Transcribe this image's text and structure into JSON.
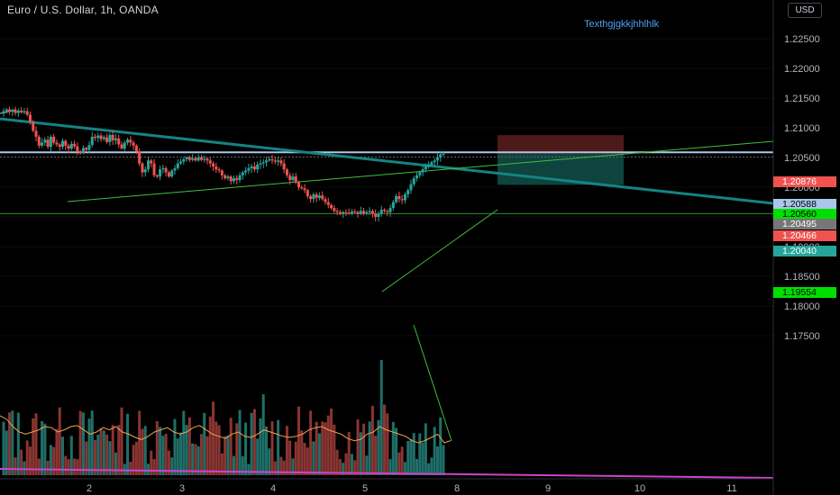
{
  "header": {
    "symbol_title": "Euro / U.S. Dollar, 1h, OANDA",
    "currency_button": "USD",
    "note_text": "Texthgjgkkjhhlhlk"
  },
  "colors": {
    "up": "#26a69a",
    "down": "#ef5350",
    "trendline": "#138484",
    "green_line": "#3fbf3f",
    "support": "#2e8b2e",
    "ma": "#f0a050",
    "vol_ma": "#cc44cc",
    "stop_zone": "#5a1f1f",
    "target_zone": "#0f4a45",
    "resistance": "#a9c7e8"
  },
  "chart_data": {
    "type": "candlestick",
    "title": "Euro / U.S. Dollar, 1h, OANDA",
    "ylim": [
      1.1725,
      1.2275
    ],
    "y_ticks": [
      "1.22500",
      "1.22000",
      "1.21500",
      "1.21000",
      "1.20500",
      "1.20000",
      "1.19500",
      "1.19000",
      "1.18500",
      "1.18000",
      "1.17500"
    ],
    "x_ticks": [
      "2",
      "3",
      "4",
      "5",
      "8",
      "9",
      "10",
      "11"
    ],
    "price_labels": [
      {
        "text": "1.20876",
        "color": "#ef5350",
        "value": 1.20876
      },
      {
        "text": "1.20588",
        "color": "#a9c7e8",
        "value": 1.20588
      },
      {
        "text": "1.20560",
        "color": "#00e000",
        "value": 1.2056
      },
      {
        "text": "1.20495",
        "color": "#777777",
        "value": 1.20495
      },
      {
        "text": "1.20466",
        "color": "#ef5350",
        "value": 1.20466
      },
      {
        "text": "1.20040",
        "color": "#26a69a",
        "value": 1.2004
      },
      {
        "text": "1.19554",
        "color": "#00e000",
        "value": 1.19554
      }
    ],
    "candles_close": [
      1.2128,
      1.2131,
      1.2127,
      1.213,
      1.2125,
      1.2129,
      1.2126,
      1.2128,
      1.2122,
      1.211,
      1.2095,
      1.2085,
      1.207,
      1.2075,
      1.208,
      1.2068,
      1.2085,
      1.2075,
      1.2072,
      1.2068,
      1.2078,
      1.207,
      1.2065,
      1.2073,
      1.2069,
      1.206,
      1.2058,
      1.2066,
      1.2063,
      1.2071,
      1.2085,
      1.2083,
      1.2087,
      1.2081,
      1.2084,
      1.2076,
      1.2088,
      1.2079,
      1.2082,
      1.2072,
      1.2065,
      1.2075,
      1.208,
      1.2075,
      1.207,
      1.206,
      1.204,
      1.2025,
      1.203,
      1.2045,
      1.204,
      1.202,
      1.2018,
      1.203,
      1.2032,
      1.2025,
      1.2018,
      1.2028,
      1.2032,
      1.204,
      1.2043,
      1.2047,
      1.205,
      1.2046,
      1.2049,
      1.2045,
      1.205,
      1.2046,
      1.2048,
      1.2045,
      1.204,
      1.2035,
      1.203,
      1.2028,
      1.202,
      1.2015,
      1.2018,
      1.201,
      1.2015,
      1.2012,
      1.202,
      1.2025,
      1.2028,
      1.2032,
      1.2035,
      1.203,
      1.2038,
      1.204,
      1.2042,
      1.2045,
      1.2047,
      1.2045,
      1.2043,
      1.2045,
      1.204,
      1.203,
      1.202,
      1.2012,
      1.2018,
      1.2008,
      1.2,
      1.1998,
      1.1995,
      1.1985,
      1.198,
      1.1988,
      1.1982,
      1.1986,
      1.198,
      1.1975,
      1.197,
      1.1965,
      1.196,
      1.1958,
      1.1955,
      1.1958,
      1.1957,
      1.1956,
      1.1959,
      1.1958,
      1.1955,
      1.196,
      1.1956,
      1.1958,
      1.196,
      1.1955,
      1.195,
      1.1955,
      1.1962,
      1.196,
      1.1958,
      1.1965,
      1.1975,
      1.1985,
      1.198,
      1.1978,
      1.1988,
      1.1995,
      1.2005,
      1.2015,
      1.202,
      1.2025,
      1.203,
      1.2035,
      1.2038,
      1.2042,
      1.2045,
      1.205,
      1.2055,
      1.2056
    ],
    "volume_ma": [
      0.55,
      0.52,
      0.45,
      0.4,
      0.38,
      0.4,
      0.42,
      0.45,
      0.44,
      0.4,
      0.42,
      0.45,
      0.46,
      0.42,
      0.38,
      0.4,
      0.44,
      0.42,
      0.45,
      0.4,
      0.38,
      0.35,
      0.33,
      0.36,
      0.4,
      0.42,
      0.44,
      0.4,
      0.38,
      0.4,
      0.44,
      0.46,
      0.42,
      0.38,
      0.36,
      0.34,
      0.38,
      0.4,
      0.36,
      0.35,
      0.38,
      0.42,
      0.4,
      0.38,
      0.36,
      0.35,
      0.36,
      0.38,
      0.42,
      0.44,
      0.45,
      0.42,
      0.4,
      0.38,
      0.34,
      0.32,
      0.33,
      0.38,
      0.4,
      0.45,
      0.42,
      0.4,
      0.38,
      0.36,
      0.32,
      0.3,
      0.32,
      0.35,
      0.38,
      0.3,
      0.32
    ]
  }
}
